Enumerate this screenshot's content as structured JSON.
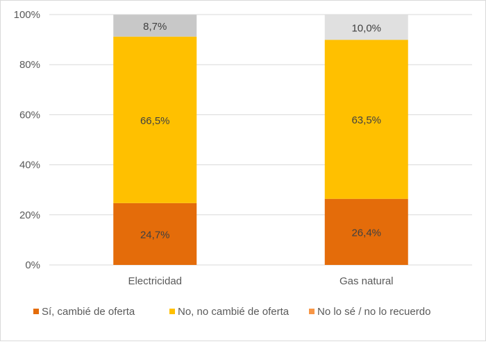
{
  "chart_data": {
    "type": "bar",
    "stacked": true,
    "percent_stacked": true,
    "categories": [
      "Electricidad",
      "Gas natural"
    ],
    "series": [
      {
        "name": "Sí, cambié de oferta",
        "color": "#e46c0a",
        "values": [
          24.7,
          26.4
        ],
        "labels": [
          "24,7%",
          "26,4%"
        ]
      },
      {
        "name": "No, no cambié de oferta",
        "color": "#ffc000",
        "values": [
          66.5,
          63.5
        ],
        "labels": [
          "66,5%",
          "63,5%"
        ]
      },
      {
        "name": "No lo sé / no lo recuerdo",
        "colors": [
          "#c8c8c8",
          "#e0e0e0"
        ],
        "legend_color": "#f79646",
        "values": [
          8.7,
          10.0
        ],
        "labels": [
          "8,7%",
          "10,0%"
        ]
      }
    ],
    "y_ticks": [
      "0%",
      "20%",
      "40%",
      "60%",
      "80%",
      "100%"
    ],
    "ylim": [
      0,
      100
    ],
    "grid": true,
    "legend_position": "bottom"
  }
}
